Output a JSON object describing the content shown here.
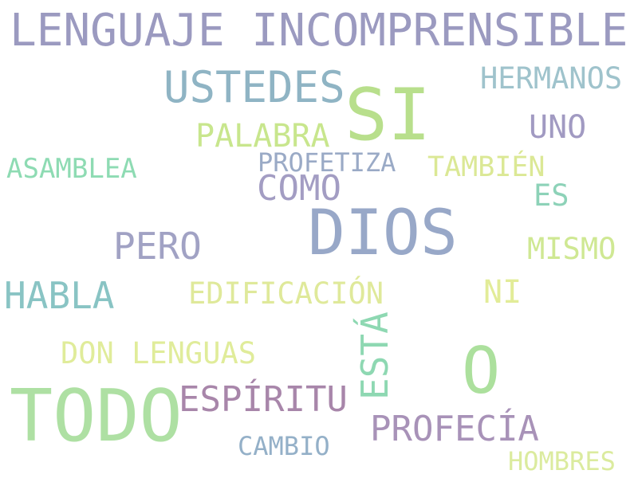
{
  "words": [
    {
      "text": "LENGUAJE INCOMPRENSIBLE",
      "color": "#9b9ac0"
    },
    {
      "text": "USTEDES",
      "color": "#8fb4c4"
    },
    {
      "text": "SI",
      "color": "#b8df8c"
    },
    {
      "text": "HERMANOS",
      "color": "#9fc3cc"
    },
    {
      "text": "UNO",
      "color": "#a19ac2"
    },
    {
      "text": "PALABRA",
      "color": "#c8e68d"
    },
    {
      "text": "ASAMBLEA",
      "color": "#8edbb3"
    },
    {
      "text": "PROFETIZA",
      "color": "#9aaac6"
    },
    {
      "text": "TAMBIÉN",
      "color": "#dbe895"
    },
    {
      "text": "COMO",
      "color": "#a39dc3"
    },
    {
      "text": "ES",
      "color": "#8dd2b8"
    },
    {
      "text": "DIOS",
      "color": "#98a8c8"
    },
    {
      "text": "PERO",
      "color": "#a1a2c4"
    },
    {
      "text": "MISMO",
      "color": "#cfe893"
    },
    {
      "text": "HABLA",
      "color": "#89c4c4"
    },
    {
      "text": "EDIFICACIÓN",
      "color": "#dfe99a"
    },
    {
      "text": "NI",
      "color": "#e2ec98"
    },
    {
      "text": "ESTÁ",
      "color": "#8ed8b2"
    },
    {
      "text": "DON LENGUAS",
      "color": "#e0ec9a"
    },
    {
      "text": "O",
      "color": "#ace09d"
    },
    {
      "text": "TODO",
      "color": "#aee0a3"
    },
    {
      "text": "ESPÍRITU",
      "color": "#a886aa"
    },
    {
      "text": "PROFECÍA",
      "color": "#a892b8"
    },
    {
      "text": "CAMBIO",
      "color": "#94b0c8"
    },
    {
      "text": "HOMBRES",
      "color": "#dbeb9e"
    }
  ]
}
